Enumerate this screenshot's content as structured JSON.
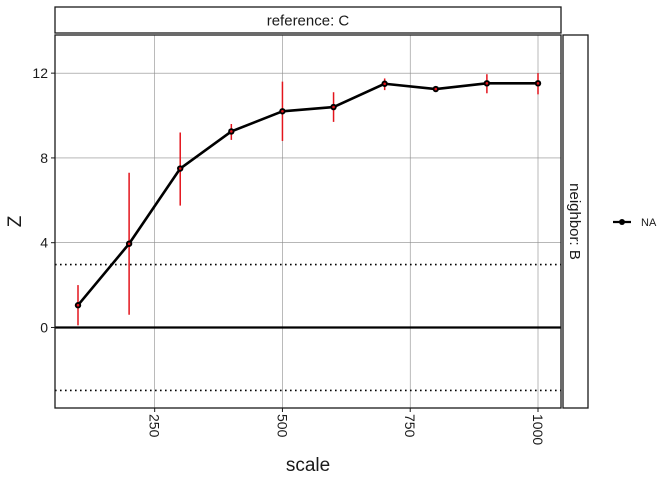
{
  "chart_data": {
    "type": "line",
    "title": "",
    "xlabel": "scale",
    "ylabel": "Z",
    "facet_top_label": "reference: C",
    "facet_right_label": "neighbor: B",
    "xlim": [
      55,
      1045
    ],
    "ylim": [
      -3.8,
      13.8
    ],
    "x_ticks": [
      250,
      500,
      750,
      1000
    ],
    "x_tick_labels": [
      "250",
      "500",
      "750",
      "1000"
    ],
    "y_ticks": [
      0,
      4,
      8,
      12
    ],
    "y_tick_labels": [
      "0",
      "4",
      "8",
      "12"
    ],
    "grid": true,
    "legend_position": "right",
    "reference_lines": [
      {
        "y": 0,
        "style": "solid"
      },
      {
        "y": 2.97,
        "style": "dotted"
      },
      {
        "y": -2.97,
        "style": "dotted"
      }
    ],
    "series": [
      {
        "name": "NA",
        "color": "#000000",
        "error_color": "#e3141c",
        "x": [
          100,
          200,
          300,
          400,
          500,
          600,
          700,
          800,
          900,
          1000
        ],
        "y": [
          1.05,
          3.95,
          7.5,
          9.25,
          10.2,
          10.4,
          11.5,
          11.25,
          11.52,
          11.52
        ],
        "y_low": [
          0.1,
          0.6,
          5.75,
          8.85,
          8.8,
          9.7,
          11.2,
          11.2,
          11.05,
          11.0
        ],
        "y_high": [
          2.0,
          7.3,
          9.2,
          9.6,
          11.6,
          11.1,
          11.75,
          11.3,
          11.95,
          12.0
        ]
      }
    ]
  }
}
